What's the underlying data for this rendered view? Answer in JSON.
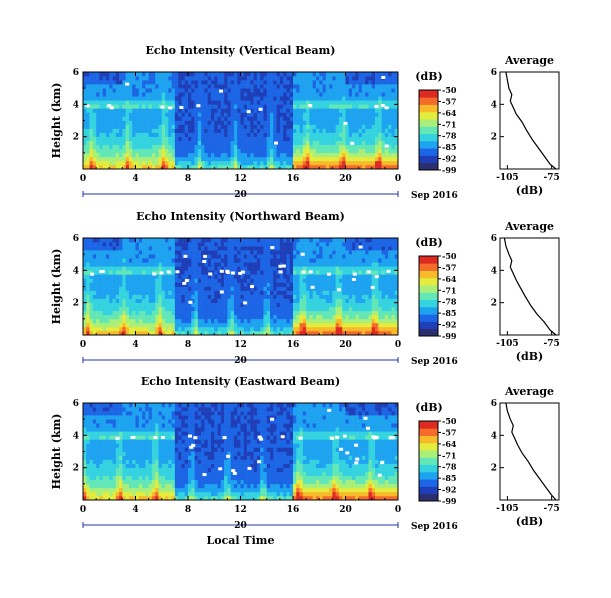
{
  "colors": {
    "scale": [
      "#2b2f6e",
      "#1f3fb8",
      "#1c66e6",
      "#1ea3f0",
      "#35d3e0",
      "#63e7b6",
      "#a9ef7a",
      "#e4ec3d",
      "#f6ba2a",
      "#f56b2b",
      "#dd2b24"
    ],
    "missing": "#ffffff",
    "axis": "#000000"
  },
  "colorbar": {
    "unit": "(dB)",
    "tick_labels": [
      "-50",
      "-57",
      "-64",
      "-71",
      "-78",
      "-85",
      "-92",
      "-99"
    ]
  },
  "chart_data": [
    {
      "type": "heatmap",
      "title": "Echo Intensity (Vertical Beam)",
      "ylabel": "Height (km)",
      "xlabel": "",
      "x_ticks": [
        "0",
        "4",
        "8",
        "12",
        "16",
        "20",
        "0"
      ],
      "x_range_hours": [
        0,
        24
      ],
      "y_ticks": [
        "6",
        "4",
        "2"
      ],
      "y_range_km": [
        0,
        6
      ],
      "date_label": "Sep 2016",
      "date_tick": "20",
      "colorbar_range_db": [
        -99,
        -50
      ],
      "notes": "Strong echoes near ground; bright band near 4 km; weak echoes 7-16 LT"
    },
    {
      "type": "heatmap",
      "title": "Echo Intensity (Northward Beam)",
      "ylabel": "Height (km)",
      "xlabel": "",
      "x_ticks": [
        "0",
        "4",
        "8",
        "12",
        "16",
        "20",
        "0"
      ],
      "x_range_hours": [
        0,
        24
      ],
      "y_ticks": [
        "6",
        "4",
        "2"
      ],
      "y_range_km": [
        0,
        6
      ],
      "date_label": "Sep 2016",
      "date_tick": "20",
      "colorbar_range_db": [
        -99,
        -50
      ]
    },
    {
      "type": "heatmap",
      "title": "Echo Intensity (Eastward Beam)",
      "ylabel": "Height (km)",
      "xlabel": "Local Time",
      "x_ticks": [
        "0",
        "4",
        "8",
        "12",
        "16",
        "20",
        "0"
      ],
      "x_range_hours": [
        0,
        24
      ],
      "y_ticks": [
        "6",
        "4",
        "2"
      ],
      "y_range_km": [
        0,
        6
      ],
      "date_label": "Sep 2016",
      "date_tick": "20",
      "colorbar_range_db": [
        -99,
        -50
      ]
    },
    {
      "type": "line",
      "title": "Average",
      "xlabel": "(dB)",
      "x_ticks": [
        "-105",
        "-75"
      ],
      "y_ticks": [
        "6",
        "4",
        "2"
      ],
      "xlim": [
        -110,
        -70
      ],
      "ylim": [
        0,
        6
      ],
      "series": [
        {
          "x": [
            -72,
            -76,
            -80,
            -84,
            -88,
            -92,
            -95,
            -99,
            -101,
            -103,
            -102,
            -104,
            -105,
            -106
          ],
          "y": [
            0.0,
            0.3,
            0.8,
            1.3,
            1.8,
            2.4,
            2.9,
            3.4,
            3.8,
            4.2,
            4.6,
            5.0,
            5.5,
            6.0
          ]
        }
      ]
    },
    {
      "type": "line",
      "title": "Average",
      "xlabel": "(dB)",
      "x_ticks": [
        "-105",
        "-75"
      ],
      "y_ticks": [
        "6",
        "4",
        "2"
      ],
      "xlim": [
        -110,
        -70
      ],
      "ylim": [
        0,
        6
      ],
      "series": [
        {
          "x": [
            -72,
            -76,
            -80,
            -85,
            -89,
            -93,
            -96,
            -99,
            -101,
            -103,
            -102,
            -104,
            -106,
            -107
          ],
          "y": [
            0.0,
            0.3,
            0.8,
            1.3,
            1.8,
            2.4,
            2.9,
            3.4,
            3.8,
            4.2,
            4.6,
            5.0,
            5.5,
            6.0
          ]
        }
      ]
    },
    {
      "type": "line",
      "title": "Average",
      "xlabel": "(dB)",
      "x_ticks": [
        "-105",
        "-75"
      ],
      "y_ticks": [
        "6",
        "4",
        "2"
      ],
      "xlim": [
        -110,
        -70
      ],
      "ylim": [
        0,
        6
      ],
      "series": [
        {
          "x": [
            -72,
            -75,
            -79,
            -83,
            -87,
            -91,
            -95,
            -98,
            -100,
            -102,
            -101,
            -103,
            -105,
            -106
          ],
          "y": [
            0.0,
            0.3,
            0.8,
            1.3,
            1.8,
            2.4,
            2.9,
            3.4,
            3.8,
            4.2,
            4.6,
            5.0,
            5.5,
            6.0
          ]
        }
      ]
    }
  ]
}
